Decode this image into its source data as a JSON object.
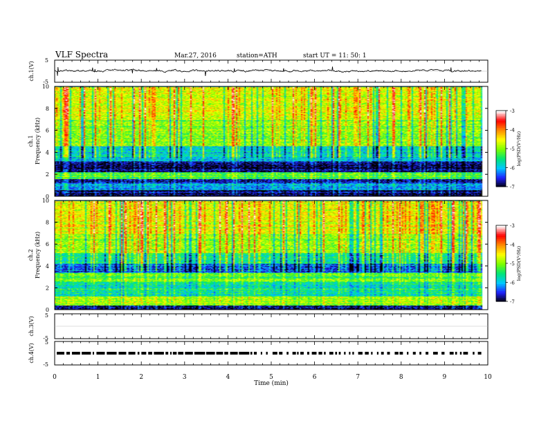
{
  "header": {
    "title": "VLF Spectra",
    "date": "Mar.27, 2016",
    "station": "station=ATH",
    "start": "start  UT =   11: 50: 1"
  },
  "colors": {
    "trace": "#000000",
    "colormap": [
      "#000000",
      "#2020ff",
      "#00c8ff",
      "#00e676",
      "#7cff00",
      "#ffff00",
      "#ff8c00",
      "#ff0000",
      "#ffffff"
    ]
  },
  "chart_data": [
    {
      "type": "line",
      "name": "ch1-waveform",
      "ylabel": "ch.1(V)",
      "ylim": [
        -5,
        5
      ],
      "yticks": [
        "5",
        "-5"
      ],
      "note_values": "continuous noisy trace around ~0 V with spikes up to about ±2 V"
    },
    {
      "type": "heatmap",
      "name": "ch1-spectrogram",
      "ylabel_channel": "ch.1",
      "ylabel": "Frequency  (kHz)",
      "ylim": [
        0,
        10
      ],
      "yticks": [
        "0",
        "2",
        "4",
        "6",
        "8",
        "10"
      ],
      "colorbar": {
        "label": "log(PSD(V²/Hz)",
        "ticks": [
          "-3",
          "-4",
          "-5",
          "-6",
          "-7"
        ],
        "range": [
          -7,
          -3
        ]
      },
      "bands_khz": [
        {
          "from": 0.0,
          "to": 0.6,
          "level": -6.8
        },
        {
          "from": 0.6,
          "to": 1.2,
          "level": -6.0
        },
        {
          "from": 1.2,
          "to": 1.6,
          "level": -6.6
        },
        {
          "from": 1.6,
          "to": 2.2,
          "level": -5.2
        },
        {
          "from": 2.2,
          "to": 3.2,
          "level": -6.8
        },
        {
          "from": 3.2,
          "to": 4.6,
          "level": -5.8
        },
        {
          "from": 4.6,
          "to": 7.0,
          "level": -5.0
        },
        {
          "from": 7.0,
          "to": 10.0,
          "level": -4.6
        }
      ]
    },
    {
      "type": "heatmap",
      "name": "ch2-spectrogram",
      "ylabel_channel": "ch.2",
      "ylabel": "Frequency  (kHz)",
      "ylim": [
        0,
        10
      ],
      "yticks": [
        "0",
        "2",
        "4",
        "6",
        "8",
        "10"
      ],
      "colorbar": {
        "label": "log(PSD(V²/Hz)",
        "ticks": [
          "-3",
          "-4",
          "-5",
          "-6",
          "-7"
        ],
        "range": [
          -7,
          -3
        ]
      },
      "bands_khz": [
        {
          "from": 0.0,
          "to": 0.4,
          "level": -6.8
        },
        {
          "from": 0.4,
          "to": 1.2,
          "level": -4.9
        },
        {
          "from": 1.2,
          "to": 2.6,
          "level": -5.6
        },
        {
          "from": 2.6,
          "to": 3.4,
          "level": -5.2
        },
        {
          "from": 3.4,
          "to": 4.2,
          "level": -6.4
        },
        {
          "from": 4.2,
          "to": 5.2,
          "level": -5.5
        },
        {
          "from": 5.2,
          "to": 7.0,
          "level": -4.9
        },
        {
          "from": 7.0,
          "to": 10.0,
          "level": -4.6
        }
      ]
    },
    {
      "type": "line",
      "name": "ch3-waveform",
      "ylabel": "ch.3(V)",
      "ylim": [
        -5,
        5
      ],
      "yticks": [
        "5",
        "-5"
      ],
      "note_values": "flat, no signal"
    },
    {
      "type": "line",
      "name": "ch4-waveform",
      "ylabel": "ch.4(V)",
      "ylim": [
        -5,
        5
      ],
      "yticks": [
        "5",
        "-5"
      ],
      "note_values": "dashed pulse trace at about 0 V"
    },
    {
      "type": "axis",
      "name": "time-axis",
      "xlabel": "Time  (min)",
      "xlim": [
        0,
        10
      ],
      "xticks": [
        "0",
        "1",
        "2",
        "3",
        "4",
        "5",
        "6",
        "7",
        "8",
        "9",
        "10"
      ]
    }
  ]
}
